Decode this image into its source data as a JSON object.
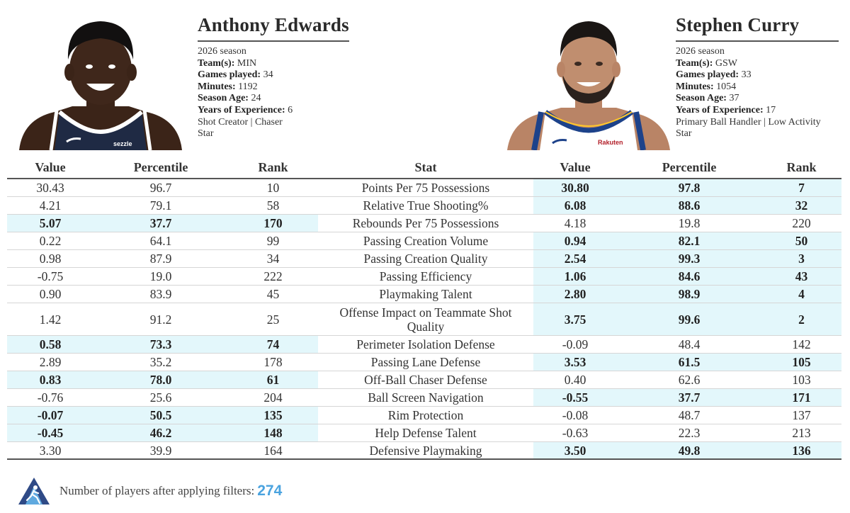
{
  "players": [
    {
      "name": "Anthony Edwards",
      "season": "2026 season",
      "details": [
        {
          "label": "Team(s):",
          "value": "MIN"
        },
        {
          "label": "Games played:",
          "value": "34"
        },
        {
          "label": "Minutes:",
          "value": "1192"
        },
        {
          "label": "Season Age:",
          "value": "24"
        },
        {
          "label": "Years of Experience:",
          "value": "6"
        }
      ],
      "archetype": "Shot Creator | Chaser",
      "tier": "Star",
      "jersey_color": "#1f2a44",
      "jersey_brand": "sezzle"
    },
    {
      "name": "Stephen Curry",
      "season": "2026 season",
      "details": [
        {
          "label": "Team(s):",
          "value": "GSW"
        },
        {
          "label": "Games played:",
          "value": "33"
        },
        {
          "label": "Minutes:",
          "value": "1054"
        },
        {
          "label": "Season Age:",
          "value": "37"
        },
        {
          "label": "Years of Experience:",
          "value": "17"
        }
      ],
      "archetype": "Primary Ball Handler | Low Activity",
      "tier": "Star",
      "jersey_color": "#ffffff",
      "jersey_brand": "Rakuten"
    }
  ],
  "table": {
    "headers": [
      "Value",
      "Percentile",
      "Rank",
      "Stat",
      "Value",
      "Percentile",
      "Rank"
    ],
    "rows": [
      {
        "stat": "Points Per 75 Possessions",
        "left": [
          "30.43",
          "96.7",
          "10"
        ],
        "right": [
          "30.80",
          "97.8",
          "7"
        ],
        "winner": "right"
      },
      {
        "stat": "Relative True Shooting%",
        "left": [
          "4.21",
          "79.1",
          "58"
        ],
        "right": [
          "6.08",
          "88.6",
          "32"
        ],
        "winner": "right"
      },
      {
        "stat": "Rebounds Per 75 Possessions",
        "left": [
          "5.07",
          "37.7",
          "170"
        ],
        "right": [
          "4.18",
          "19.8",
          "220"
        ],
        "winner": "left"
      },
      {
        "stat": "Passing Creation Volume",
        "left": [
          "0.22",
          "64.1",
          "99"
        ],
        "right": [
          "0.94",
          "82.1",
          "50"
        ],
        "winner": "right"
      },
      {
        "stat": "Passing Creation Quality",
        "left": [
          "0.98",
          "87.9",
          "34"
        ],
        "right": [
          "2.54",
          "99.3",
          "3"
        ],
        "winner": "right"
      },
      {
        "stat": "Passing Efficiency",
        "left": [
          "-0.75",
          "19.0",
          "222"
        ],
        "right": [
          "1.06",
          "84.6",
          "43"
        ],
        "winner": "right"
      },
      {
        "stat": "Playmaking Talent",
        "left": [
          "0.90",
          "83.9",
          "45"
        ],
        "right": [
          "2.80",
          "98.9",
          "4"
        ],
        "winner": "right"
      },
      {
        "stat": "Offense Impact on Teammate Shot Quality",
        "left": [
          "1.42",
          "91.2",
          "25"
        ],
        "right": [
          "3.75",
          "99.6",
          "2"
        ],
        "winner": "right"
      },
      {
        "stat": "Perimeter Isolation Defense",
        "left": [
          "0.58",
          "73.3",
          "74"
        ],
        "right": [
          "-0.09",
          "48.4",
          "142"
        ],
        "winner": "left"
      },
      {
        "stat": "Passing Lane Defense",
        "left": [
          "2.89",
          "35.2",
          "178"
        ],
        "right": [
          "3.53",
          "61.5",
          "105"
        ],
        "winner": "right"
      },
      {
        "stat": "Off-Ball Chaser Defense",
        "left": [
          "0.83",
          "78.0",
          "61"
        ],
        "right": [
          "0.40",
          "62.6",
          "103"
        ],
        "winner": "left"
      },
      {
        "stat": "Ball Screen Navigation",
        "left": [
          "-0.76",
          "25.6",
          "204"
        ],
        "right": [
          "-0.55",
          "37.7",
          "171"
        ],
        "winner": "right"
      },
      {
        "stat": "Rim Protection",
        "left": [
          "-0.07",
          "50.5",
          "135"
        ],
        "right": [
          "-0.08",
          "48.7",
          "137"
        ],
        "winner": "left"
      },
      {
        "stat": "Help Defense Talent",
        "left": [
          "-0.45",
          "46.2",
          "148"
        ],
        "right": [
          "-0.63",
          "22.3",
          "213"
        ],
        "winner": "left"
      },
      {
        "stat": "Defensive Playmaking",
        "left": [
          "3.30",
          "39.9",
          "164"
        ],
        "right": [
          "3.50",
          "49.8",
          "136"
        ],
        "winner": "right"
      }
    ]
  },
  "footer": {
    "label": "Number of players after applying filters:",
    "count": "274"
  },
  "colors": {
    "highlight": "#e3f7fb",
    "accent": "#4aa3df",
    "rule": "#555555"
  }
}
